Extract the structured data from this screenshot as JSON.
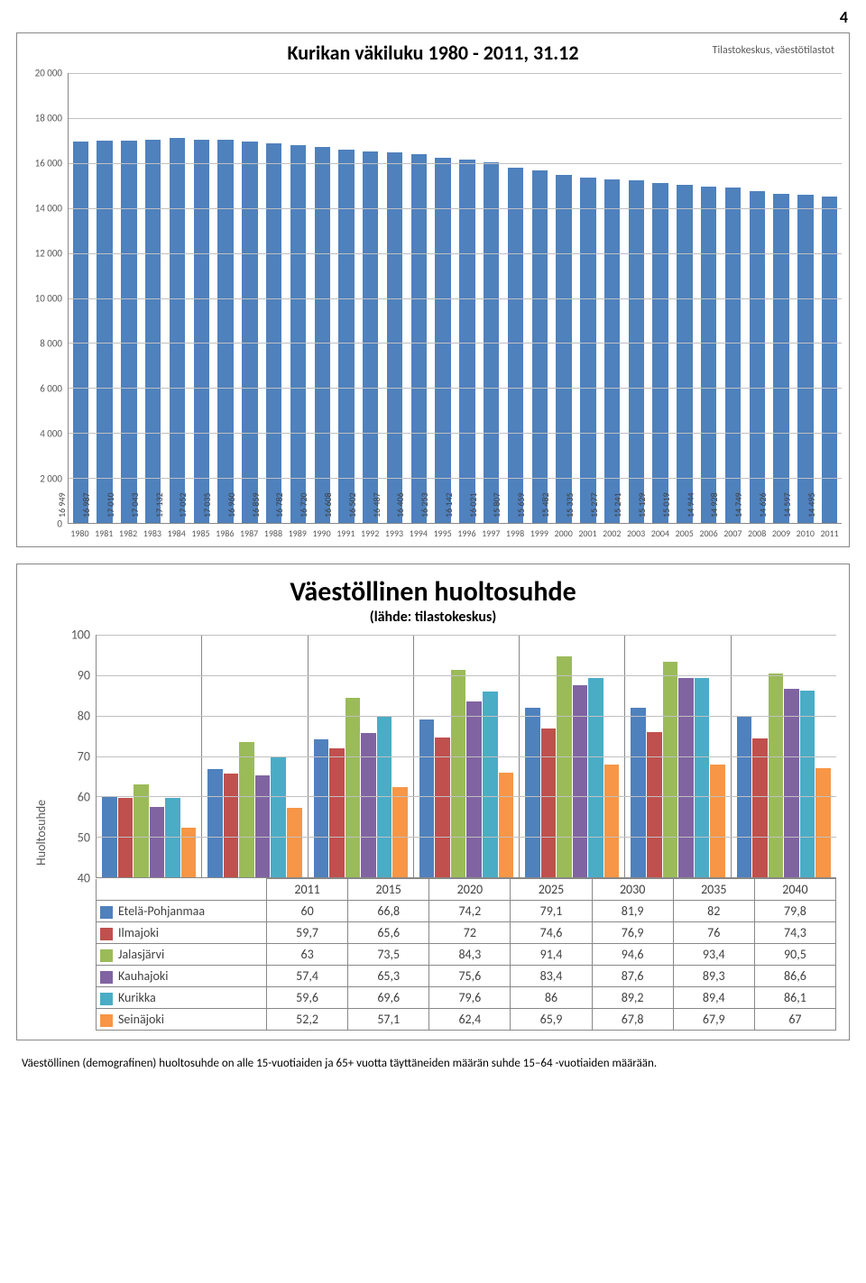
{
  "page_number": "4",
  "chart1": {
    "type": "bar",
    "title": "Kurikan väkiluku 1980 - 2011, 31.12",
    "source": "Tilastokeskus, väestötilastot",
    "bar_color": "#4f81bd",
    "grid_color": "#c0c0c0",
    "ylim": [
      0,
      20000
    ],
    "ytick_step": 2000,
    "yticks": [
      "0",
      "2 000",
      "4 000",
      "6 000",
      "8 000",
      "10 000",
      "12 000",
      "14 000",
      "16 000",
      "18 000",
      "20 000"
    ],
    "years": [
      "1980",
      "1981",
      "1982",
      "1983",
      "1984",
      "1985",
      "1986",
      "1987",
      "1988",
      "1989",
      "1990",
      "1991",
      "1992",
      "1993",
      "1994",
      "1995",
      "1996",
      "1997",
      "1998",
      "1999",
      "2000",
      "2001",
      "2002",
      "2003",
      "2004",
      "2005",
      "2006",
      "2007",
      "2008",
      "2009",
      "2010",
      "2011"
    ],
    "values": [
      16949,
      16987,
      17010,
      17043,
      17132,
      17052,
      17035,
      16960,
      16859,
      16782,
      16720,
      16608,
      16502,
      16487,
      16406,
      16253,
      16142,
      16021,
      15807,
      15659,
      15482,
      15335,
      15277,
      15241,
      15129,
      15019,
      14944,
      14928,
      14749,
      14626,
      14597,
      14495
    ],
    "value_labels": [
      "16 949",
      "16 987",
      "17 010",
      "17 043",
      "17 132",
      "17 052",
      "17 035",
      "16 960",
      "16 859",
      "16 782",
      "16 720",
      "16 608",
      "16 502",
      "16 487",
      "16 406",
      "16 253",
      "16 142",
      "16 021",
      "15 807",
      "15 659",
      "15 482",
      "15 335",
      "15 277",
      "15 241",
      "15 129",
      "15 019",
      "14 944",
      "14 928",
      "14 749",
      "14 626",
      "14 597",
      "14 495"
    ]
  },
  "chart2": {
    "type": "grouped-bar-with-table",
    "title": "Väestöllinen huoltosuhde",
    "subtitle": "(lähde: tilastokeskus)",
    "yaxis_label": "Huoltosuhde",
    "ylim": [
      40,
      100
    ],
    "ytick_step": 10,
    "yticks": [
      "40",
      "50",
      "60",
      "70",
      "80",
      "90",
      "100"
    ],
    "categories": [
      "2011",
      "2015",
      "2020",
      "2025",
      "2030",
      "2035",
      "2040"
    ],
    "series": [
      {
        "name": "Etelä-Pohjanmaa",
        "color": "#4f81bd",
        "values": [
          60,
          66.8,
          74.2,
          79.1,
          81.9,
          82,
          79.8
        ],
        "labels": [
          "60",
          "66,8",
          "74,2",
          "79,1",
          "81,9",
          "82",
          "79,8"
        ]
      },
      {
        "name": "Ilmajoki",
        "color": "#c0504d",
        "values": [
          59.7,
          65.6,
          72,
          74.6,
          76.9,
          76,
          74.3
        ],
        "labels": [
          "59,7",
          "65,6",
          "72",
          "74,6",
          "76,9",
          "76",
          "74,3"
        ]
      },
      {
        "name": "Jalasjärvi",
        "color": "#9bbb59",
        "values": [
          63,
          73.5,
          84.3,
          91.4,
          94.6,
          93.4,
          90.5
        ],
        "labels": [
          "63",
          "73,5",
          "84,3",
          "91,4",
          "94,6",
          "93,4",
          "90,5"
        ]
      },
      {
        "name": "Kauhajoki",
        "color": "#8064a2",
        "values": [
          57.4,
          65.3,
          75.6,
          83.4,
          87.6,
          89.3,
          86.6
        ],
        "labels": [
          "57,4",
          "65,3",
          "75,6",
          "83,4",
          "87,6",
          "89,3",
          "86,6"
        ]
      },
      {
        "name": "Kurikka",
        "color": "#4bacc6",
        "values": [
          59.6,
          69.6,
          79.6,
          86,
          89.2,
          89.4,
          86.1
        ],
        "labels": [
          "59,6",
          "69,6",
          "79,6",
          "86",
          "89,2",
          "89,4",
          "86,1"
        ]
      },
      {
        "name": "Seinäjoki",
        "color": "#f79646",
        "values": [
          52.2,
          57.1,
          62.4,
          65.9,
          67.8,
          67.9,
          67
        ],
        "labels": [
          "52,2",
          "57,1",
          "62,4",
          "65,9",
          "67,8",
          "67,9",
          "67"
        ]
      }
    ],
    "grid_color": "#c0c0c0"
  },
  "footnote": "Väestöllinen (demografinen) huoltosuhde on alle 15-vuotiaiden ja  65+ vuotta täyttäneiden määrän suhde 15–64 -vuotiaiden määrään."
}
